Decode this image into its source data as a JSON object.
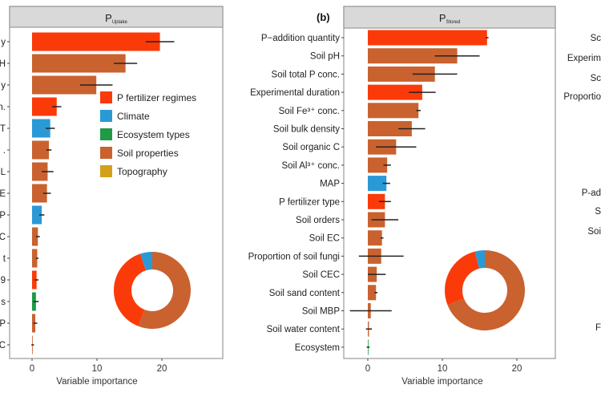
{
  "colors": {
    "P fertilizer regimes": "#fb3a0a",
    "Climate": "#2a9ad6",
    "Ecosystem types": "#1f9a46",
    "Soil properties": "#c9622f",
    "Topography": "#d4a017"
  },
  "legend": [
    "P fertilizer regimes",
    "Climate",
    "Ecosystem types",
    "Soil properties",
    "Topography"
  ],
  "chart_data": [
    {
      "type": "bar",
      "panel_tag": "",
      "title": "P",
      "title_sub": "Uptake",
      "xlabel": "Variable importance",
      "xticks": [
        "0",
        "10",
        "20"
      ],
      "xlim": [
        -3,
        29
      ],
      "grid": false,
      "categories": [
        "y",
        "H",
        "y",
        "n.",
        "T",
        ".",
        "L",
        "E",
        "P",
        "C",
        "t",
        "9",
        "s",
        "P",
        "C"
      ],
      "values": [
        19.7,
        14.4,
        9.9,
        3.8,
        2.8,
        2.6,
        2.4,
        2.3,
        1.5,
        0.9,
        0.8,
        0.7,
        0.6,
        0.5,
        0.1
      ],
      "errors": [
        2.2,
        1.8,
        2.5,
        0.7,
        0.7,
        0.4,
        0.9,
        0.6,
        0.4,
        0.3,
        0.2,
        0.3,
        0.4,
        0.3,
        0.2
      ],
      "groups": [
        "P fertilizer regimes",
        "Soil properties",
        "Soil properties",
        "P fertilizer regimes",
        "Climate",
        "Soil properties",
        "Soil properties",
        "Soil properties",
        "Climate",
        "Soil properties",
        "Soil properties",
        "P fertilizer regimes",
        "Ecosystem types",
        "Soil properties",
        "Soil properties"
      ],
      "donut": {
        "type": "pie",
        "slices": [
          {
            "group": "Soil properties",
            "share": 0.56
          },
          {
            "group": "P fertilizer regimes",
            "share": 0.39
          },
          {
            "group": "Climate",
            "share": 0.05
          }
        ]
      }
    },
    {
      "type": "bar",
      "panel_tag": "(b)",
      "title": "P",
      "title_sub": "Stored",
      "xlabel": "Variable importance",
      "xticks": [
        "0",
        "10",
        "20"
      ],
      "xlim": [
        -3.2,
        25.2
      ],
      "grid": false,
      "categories": [
        "P−addition quantity",
        "Soil pH",
        "Soil total P conc.",
        "Experimental duration",
        "Soil Fe³⁺ conc.",
        "Soil bulk density",
        "Soil organic C",
        "Soil Al³⁺ conc.",
        "MAP",
        "P fertilizer type",
        "Soil orders",
        "Soil EC",
        "Proportion of soil fungi",
        "Soil CEC",
        "Soil sand content",
        "Soil MBP",
        "Soil water content",
        "Ecosystem"
      ],
      "values": [
        16,
        12,
        9,
        7.3,
        6.8,
        5.9,
        3.8,
        2.6,
        2.5,
        2.3,
        2.3,
        1.9,
        1.8,
        1.2,
        1.1,
        0.4,
        0.15,
        0.05
      ],
      "errors": [
        0.2,
        3,
        3,
        1.8,
        0.3,
        1.8,
        2.7,
        0.5,
        0.5,
        0.8,
        1.8,
        0.2,
        3,
        1.2,
        0.2,
        2.8,
        0.4,
        0.2
      ],
      "groups": [
        "P fertilizer regimes",
        "Soil properties",
        "Soil properties",
        "P fertilizer regimes",
        "Soil properties",
        "Soil properties",
        "Soil properties",
        "Soil properties",
        "Climate",
        "P fertilizer regimes",
        "Soil properties",
        "Soil properties",
        "Soil properties",
        "Soil properties",
        "Soil properties",
        "Soil properties",
        "Soil properties",
        "Ecosystem types"
      ],
      "donut": {
        "type": "pie",
        "slices": [
          {
            "group": "Soil properties",
            "share": 0.69
          },
          {
            "group": "P fertilizer regimes",
            "share": 0.27
          },
          {
            "group": "Climate",
            "share": 0.04
          }
        ]
      }
    }
  ],
  "right_panel_labels": [
    "Sc",
    "Experim",
    "Sc",
    "Proportio",
    "P-ad",
    "S",
    "Soi",
    "F"
  ]
}
